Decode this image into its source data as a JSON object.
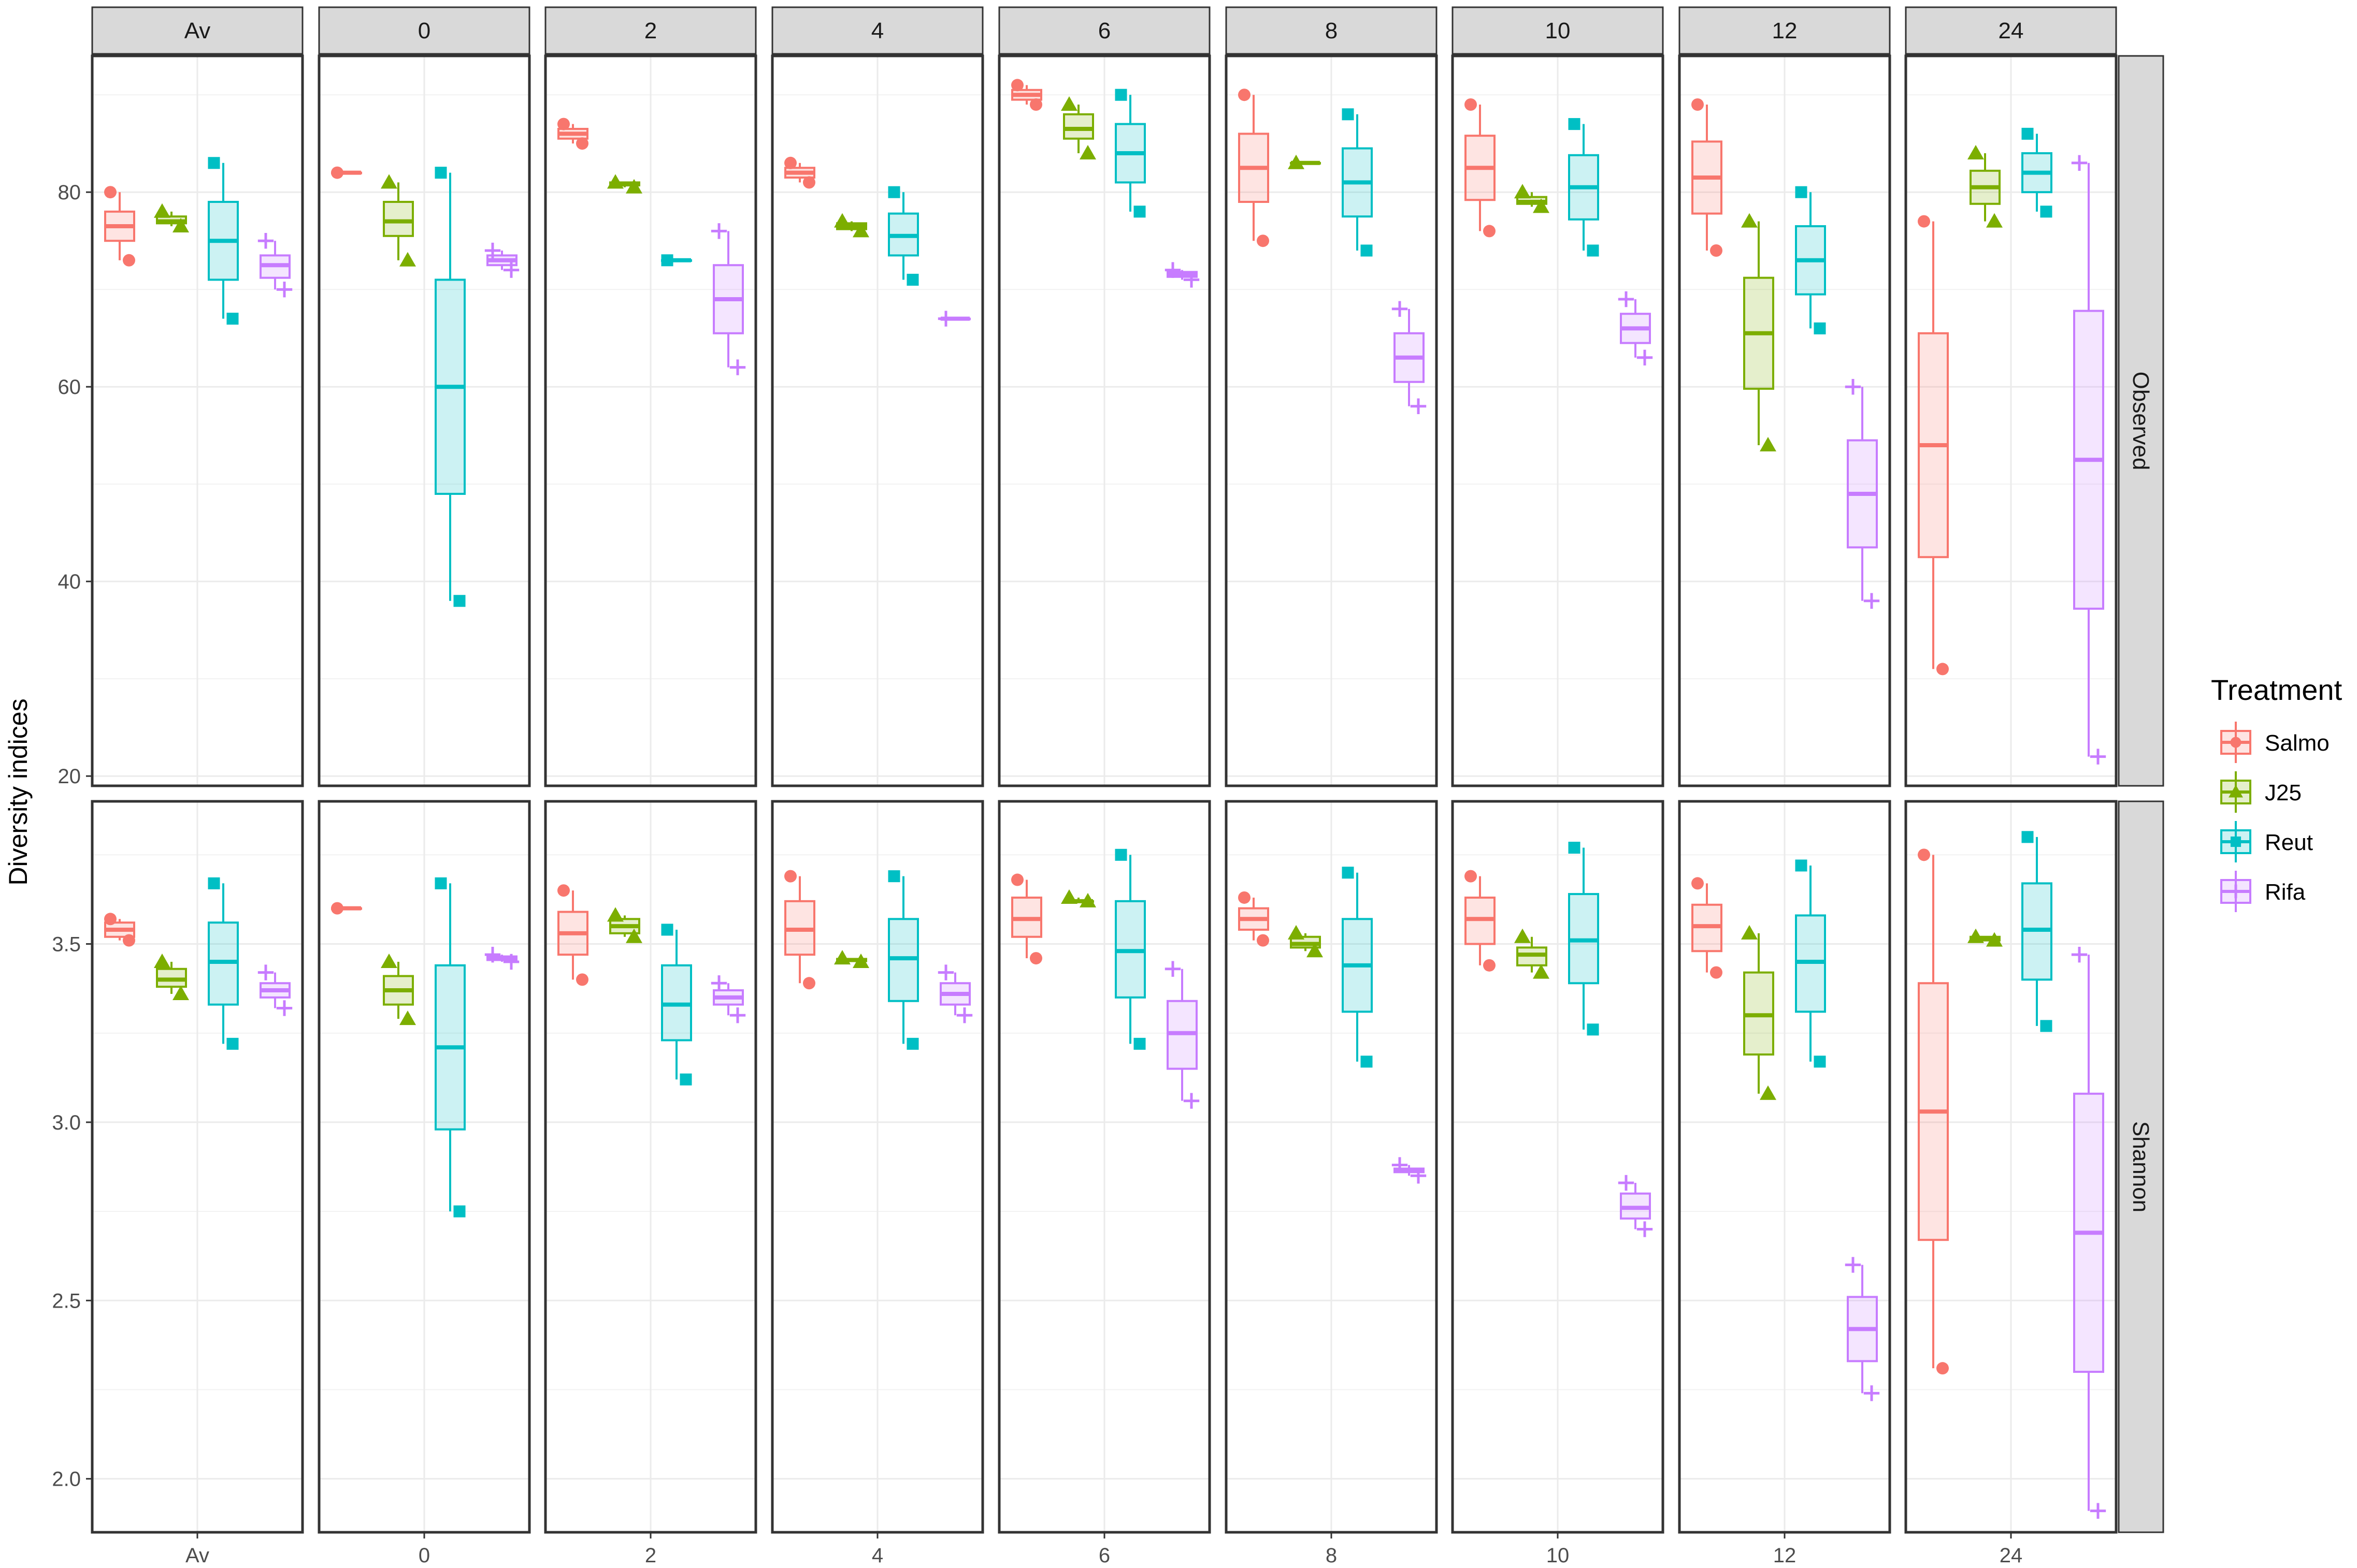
{
  "chart_data": {
    "type": "box",
    "ylabel": "Diversity indices",
    "xlabel": "",
    "column_facets": [
      "Av",
      "0",
      "2",
      "4",
      "6",
      "8",
      "10",
      "12",
      "24"
    ],
    "row_facets": [
      {
        "name": "Observed",
        "ylim": [
          19,
          94
        ],
        "ticks": [
          20,
          40,
          60,
          80
        ]
      },
      {
        "name": "Shannon",
        "ylim": [
          1.85,
          3.9
        ],
        "ticks": [
          2.0,
          2.5,
          3.0,
          3.5
        ]
      }
    ],
    "legend": {
      "title": "Treatment",
      "placement": "right",
      "entries": [
        {
          "name": "Salmo",
          "color": "#F8766D",
          "shape": "circle"
        },
        {
          "name": "J25",
          "color": "#7CAE00",
          "shape": "triangle"
        },
        {
          "name": "Reut",
          "color": "#00BFC4",
          "shape": "square"
        },
        {
          "name": "Rifa",
          "color": "#C77CFF",
          "shape": "plus"
        }
      ]
    },
    "grid": true,
    "boxes": {
      "Observed": {
        "Av": {
          "Salmo": {
            "min": 73,
            "q1": 75,
            "median": 76.5,
            "q3": 78,
            "max": 80,
            "points": [
              80,
              73
            ]
          },
          "J25": {
            "min": 76.5,
            "q1": 76.8,
            "median": 77,
            "q3": 77.5,
            "max": 78,
            "points": [
              78,
              76.5
            ]
          },
          "Reut": {
            "min": 67,
            "q1": 71,
            "median": 75,
            "q3": 79,
            "max": 83,
            "points": [
              83,
              67
            ]
          },
          "Rifa": {
            "min": 70,
            "q1": 71.2,
            "median": 72.5,
            "q3": 73.5,
            "max": 75,
            "points": [
              75,
              70
            ]
          }
        },
        "0": {
          "Salmo": {
            "min": 82,
            "q1": 82,
            "median": 82,
            "q3": 82,
            "max": 82,
            "points": [
              82
            ]
          },
          "J25": {
            "min": 73,
            "q1": 75.5,
            "median": 77,
            "q3": 79,
            "max": 81,
            "points": [
              81,
              73
            ]
          },
          "Reut": {
            "min": 38,
            "q1": 49,
            "median": 60,
            "q3": 71,
            "max": 82,
            "points": [
              82,
              38
            ]
          },
          "Rifa": {
            "min": 72,
            "q1": 72.5,
            "median": 73,
            "q3": 73.5,
            "max": 74,
            "points": [
              74,
              72
            ]
          }
        },
        "2": {
          "Salmo": {
            "min": 85,
            "q1": 85.5,
            "median": 86,
            "q3": 86.5,
            "max": 87,
            "points": [
              87,
              85
            ]
          },
          "J25": {
            "min": 80.5,
            "q1": 80.7,
            "median": 80.8,
            "q3": 81,
            "max": 81,
            "points": [
              81,
              80.5
            ]
          },
          "Reut": {
            "min": 73,
            "q1": 73,
            "median": 73,
            "q3": 73,
            "max": 73,
            "points": [
              73
            ]
          },
          "Rifa": {
            "min": 62,
            "q1": 65.5,
            "median": 69,
            "q3": 72.5,
            "max": 76,
            "points": [
              76,
              62
            ]
          }
        },
        "4": {
          "Salmo": {
            "min": 81,
            "q1": 81.5,
            "median": 82,
            "q3": 82.5,
            "max": 83,
            "points": [
              83,
              81
            ]
          },
          "J25": {
            "min": 76,
            "q1": 76.2,
            "median": 76.5,
            "q3": 76.8,
            "max": 77,
            "points": [
              77,
              76
            ]
          },
          "Reut": {
            "min": 71,
            "q1": 73.5,
            "median": 75.5,
            "q3": 77.8,
            "max": 80,
            "points": [
              80,
              71
            ]
          },
          "Rifa": {
            "min": 67,
            "q1": 67,
            "median": 67,
            "q3": 67,
            "max": 67,
            "points": [
              67
            ]
          }
        },
        "6": {
          "Salmo": {
            "min": 89,
            "q1": 89.5,
            "median": 90,
            "q3": 90.5,
            "max": 91,
            "points": [
              91,
              89
            ]
          },
          "J25": {
            "min": 84,
            "q1": 85.5,
            "median": 86.5,
            "q3": 88,
            "max": 89,
            "points": [
              89,
              84
            ]
          },
          "Reut": {
            "min": 78,
            "q1": 81,
            "median": 84,
            "q3": 87,
            "max": 90,
            "points": [
              90,
              78
            ]
          },
          "Rifa": {
            "min": 71,
            "q1": 71.3,
            "median": 71.5,
            "q3": 71.8,
            "max": 72,
            "points": [
              72,
              71
            ]
          }
        },
        "8": {
          "Salmo": {
            "min": 75,
            "q1": 79,
            "median": 82.5,
            "q3": 86,
            "max": 90,
            "points": [
              90,
              75
            ]
          },
          "J25": {
            "min": 83,
            "q1": 83,
            "median": 83,
            "q3": 83,
            "max": 83,
            "points": [
              83
            ]
          },
          "Reut": {
            "min": 74,
            "q1": 77.5,
            "median": 81,
            "q3": 84.5,
            "max": 88,
            "points": [
              88,
              74
            ]
          },
          "Rifa": {
            "min": 58,
            "q1": 60.5,
            "median": 63,
            "q3": 65.5,
            "max": 68,
            "points": [
              68,
              58
            ]
          }
        },
        "10": {
          "Salmo": {
            "min": 76,
            "q1": 79.2,
            "median": 82.5,
            "q3": 85.8,
            "max": 89,
            "points": [
              89,
              76
            ]
          },
          "J25": {
            "min": 78.5,
            "q1": 78.8,
            "median": 79,
            "q3": 79.5,
            "max": 80,
            "points": [
              80,
              78.5
            ]
          },
          "Reut": {
            "min": 74,
            "q1": 77.2,
            "median": 80.5,
            "q3": 83.8,
            "max": 87,
            "points": [
              87,
              74
            ]
          },
          "Rifa": {
            "min": 63,
            "q1": 64.5,
            "median": 66,
            "q3": 67.5,
            "max": 69,
            "points": [
              69,
              63
            ]
          }
        },
        "12": {
          "Salmo": {
            "min": 74,
            "q1": 77.8,
            "median": 81.5,
            "q3": 85.2,
            "max": 89,
            "points": [
              89,
              74
            ]
          },
          "J25": {
            "min": 54,
            "q1": 59.8,
            "median": 65.5,
            "q3": 71.2,
            "max": 77,
            "points": [
              77,
              54
            ]
          },
          "Reut": {
            "min": 66,
            "q1": 69.5,
            "median": 73,
            "q3": 76.5,
            "max": 80,
            "points": [
              80,
              66
            ]
          },
          "Rifa": {
            "min": 38,
            "q1": 43.5,
            "median": 49,
            "q3": 54.5,
            "max": 60,
            "points": [
              60,
              38
            ]
          }
        },
        "24": {
          "Salmo": {
            "min": 31,
            "q1": 42.5,
            "median": 54,
            "q3": 65.5,
            "max": 77,
            "points": [
              77,
              31
            ]
          },
          "J25": {
            "min": 77,
            "q1": 78.8,
            "median": 80.5,
            "q3": 82.2,
            "max": 84,
            "points": [
              84,
              77
            ]
          },
          "Reut": {
            "min": 78,
            "q1": 80,
            "median": 82,
            "q3": 84,
            "max": 86,
            "points": [
              86,
              78
            ]
          },
          "Rifa": {
            "min": 22,
            "q1": 37.2,
            "median": 52.5,
            "q3": 67.8,
            "max": 83,
            "points": [
              83,
              22
            ]
          }
        }
      },
      "Shannon": {
        "Av": {
          "Salmo": {
            "min": 3.51,
            "q1": 3.52,
            "median": 3.54,
            "q3": 3.56,
            "max": 3.57,
            "points": [
              3.57,
              3.51
            ]
          },
          "J25": {
            "min": 3.36,
            "q1": 3.38,
            "median": 3.4,
            "q3": 3.43,
            "max": 3.45,
            "points": [
              3.45,
              3.36
            ]
          },
          "Reut": {
            "min": 3.22,
            "q1": 3.33,
            "median": 3.45,
            "q3": 3.56,
            "max": 3.67,
            "points": [
              3.67,
              3.22
            ]
          },
          "Rifa": {
            "min": 3.32,
            "q1": 3.35,
            "median": 3.37,
            "q3": 3.39,
            "max": 3.42,
            "points": [
              3.42,
              3.32
            ]
          }
        },
        "0": {
          "Salmo": {
            "min": 3.6,
            "q1": 3.6,
            "median": 3.6,
            "q3": 3.6,
            "max": 3.6,
            "points": [
              3.6
            ]
          },
          "J25": {
            "min": 3.29,
            "q1": 3.33,
            "median": 3.37,
            "q3": 3.41,
            "max": 3.45,
            "points": [
              3.45,
              3.29
            ]
          },
          "Reut": {
            "min": 2.75,
            "q1": 2.98,
            "median": 3.21,
            "q3": 3.44,
            "max": 3.67,
            "points": [
              3.67,
              2.75
            ]
          },
          "Rifa": {
            "min": 3.45,
            "q1": 3.455,
            "median": 3.46,
            "q3": 3.465,
            "max": 3.47,
            "points": [
              3.47,
              3.45
            ]
          }
        },
        "2": {
          "Salmo": {
            "min": 3.4,
            "q1": 3.47,
            "median": 3.53,
            "q3": 3.59,
            "max": 3.65,
            "points": [
              3.65,
              3.4
            ]
          },
          "J25": {
            "min": 3.52,
            "q1": 3.53,
            "median": 3.55,
            "q3": 3.57,
            "max": 3.58,
            "points": [
              3.58,
              3.52
            ]
          },
          "Reut": {
            "min": 3.12,
            "q1": 3.23,
            "median": 3.33,
            "q3": 3.44,
            "max": 3.54,
            "points": [
              3.54,
              3.12
            ]
          },
          "Rifa": {
            "min": 3.3,
            "q1": 3.33,
            "median": 3.35,
            "q3": 3.37,
            "max": 3.39,
            "points": [
              3.39,
              3.3
            ]
          }
        },
        "4": {
          "Salmo": {
            "min": 3.39,
            "q1": 3.47,
            "median": 3.54,
            "q3": 3.62,
            "max": 3.69,
            "points": [
              3.69,
              3.39
            ]
          },
          "J25": {
            "min": 3.45,
            "q1": 3.452,
            "median": 3.455,
            "q3": 3.458,
            "max": 3.46,
            "points": [
              3.46,
              3.45
            ]
          },
          "Reut": {
            "min": 3.22,
            "q1": 3.34,
            "median": 3.46,
            "q3": 3.57,
            "max": 3.69,
            "points": [
              3.69,
              3.22
            ]
          },
          "Rifa": {
            "min": 3.3,
            "q1": 3.33,
            "median": 3.36,
            "q3": 3.39,
            "max": 3.42,
            "points": [
              3.42,
              3.3
            ]
          }
        },
        "6": {
          "Salmo": {
            "min": 3.46,
            "q1": 3.52,
            "median": 3.57,
            "q3": 3.63,
            "max": 3.68,
            "points": [
              3.68,
              3.46
            ]
          },
          "J25": {
            "min": 3.62,
            "q1": 3.62,
            "median": 3.62,
            "q3": 3.62,
            "max": 3.63,
            "points": [
              3.63,
              3.62
            ]
          },
          "Reut": {
            "min": 3.22,
            "q1": 3.35,
            "median": 3.48,
            "q3": 3.62,
            "max": 3.75,
            "points": [
              3.75,
              3.22
            ]
          },
          "Rifa": {
            "min": 3.06,
            "q1": 3.15,
            "median": 3.25,
            "q3": 3.34,
            "max": 3.43,
            "points": [
              3.43,
              3.06
            ]
          }
        },
        "8": {
          "Salmo": {
            "min": 3.51,
            "q1": 3.54,
            "median": 3.57,
            "q3": 3.6,
            "max": 3.63,
            "points": [
              3.63,
              3.51
            ]
          },
          "J25": {
            "min": 3.48,
            "q1": 3.49,
            "median": 3.5,
            "q3": 3.52,
            "max": 3.53,
            "points": [
              3.53,
              3.48
            ]
          },
          "Reut": {
            "min": 3.17,
            "q1": 3.31,
            "median": 3.44,
            "q3": 3.57,
            "max": 3.7,
            "points": [
              3.7,
              3.17
            ]
          },
          "Rifa": {
            "min": 2.85,
            "q1": 2.86,
            "median": 2.865,
            "q3": 2.87,
            "max": 2.88,
            "points": [
              2.88,
              2.85
            ]
          }
        },
        "10": {
          "Salmo": {
            "min": 3.44,
            "q1": 3.5,
            "median": 3.57,
            "q3": 3.63,
            "max": 3.69,
            "points": [
              3.69,
              3.44
            ]
          },
          "J25": {
            "min": 3.42,
            "q1": 3.44,
            "median": 3.47,
            "q3": 3.49,
            "max": 3.52,
            "points": [
              3.52,
              3.42
            ]
          },
          "Reut": {
            "min": 3.26,
            "q1": 3.39,
            "median": 3.51,
            "q3": 3.64,
            "max": 3.77,
            "points": [
              3.77,
              3.26
            ]
          },
          "Rifa": {
            "min": 2.7,
            "q1": 2.73,
            "median": 2.76,
            "q3": 2.8,
            "max": 2.83,
            "points": [
              2.83,
              2.7
            ]
          }
        },
        "12": {
          "Salmo": {
            "min": 3.42,
            "q1": 3.48,
            "median": 3.55,
            "q3": 3.61,
            "max": 3.67,
            "points": [
              3.67,
              3.42
            ]
          },
          "J25": {
            "min": 3.08,
            "q1": 3.19,
            "median": 3.3,
            "q3": 3.42,
            "max": 3.53,
            "points": [
              3.53,
              3.08
            ]
          },
          "Reut": {
            "min": 3.17,
            "q1": 3.31,
            "median": 3.45,
            "q3": 3.58,
            "max": 3.72,
            "points": [
              3.72,
              3.17
            ]
          },
          "Rifa": {
            "min": 2.24,
            "q1": 2.33,
            "median": 2.42,
            "q3": 2.51,
            "max": 2.6,
            "points": [
              2.6,
              2.24
            ]
          }
        },
        "24": {
          "Salmo": {
            "min": 2.31,
            "q1": 2.67,
            "median": 3.03,
            "q3": 3.39,
            "max": 3.75,
            "points": [
              3.75,
              2.31
            ]
          },
          "J25": {
            "min": 3.51,
            "q1": 3.51,
            "median": 3.515,
            "q3": 3.52,
            "max": 3.52,
            "points": [
              3.52,
              3.51
            ]
          },
          "Reut": {
            "min": 3.27,
            "q1": 3.4,
            "median": 3.54,
            "q3": 3.67,
            "max": 3.8,
            "points": [
              3.8,
              3.27
            ]
          },
          "Rifa": {
            "min": 1.91,
            "q1": 2.3,
            "median": 2.69,
            "q3": 3.08,
            "max": 3.47,
            "points": [
              3.47,
              1.91
            ]
          }
        }
      }
    }
  }
}
